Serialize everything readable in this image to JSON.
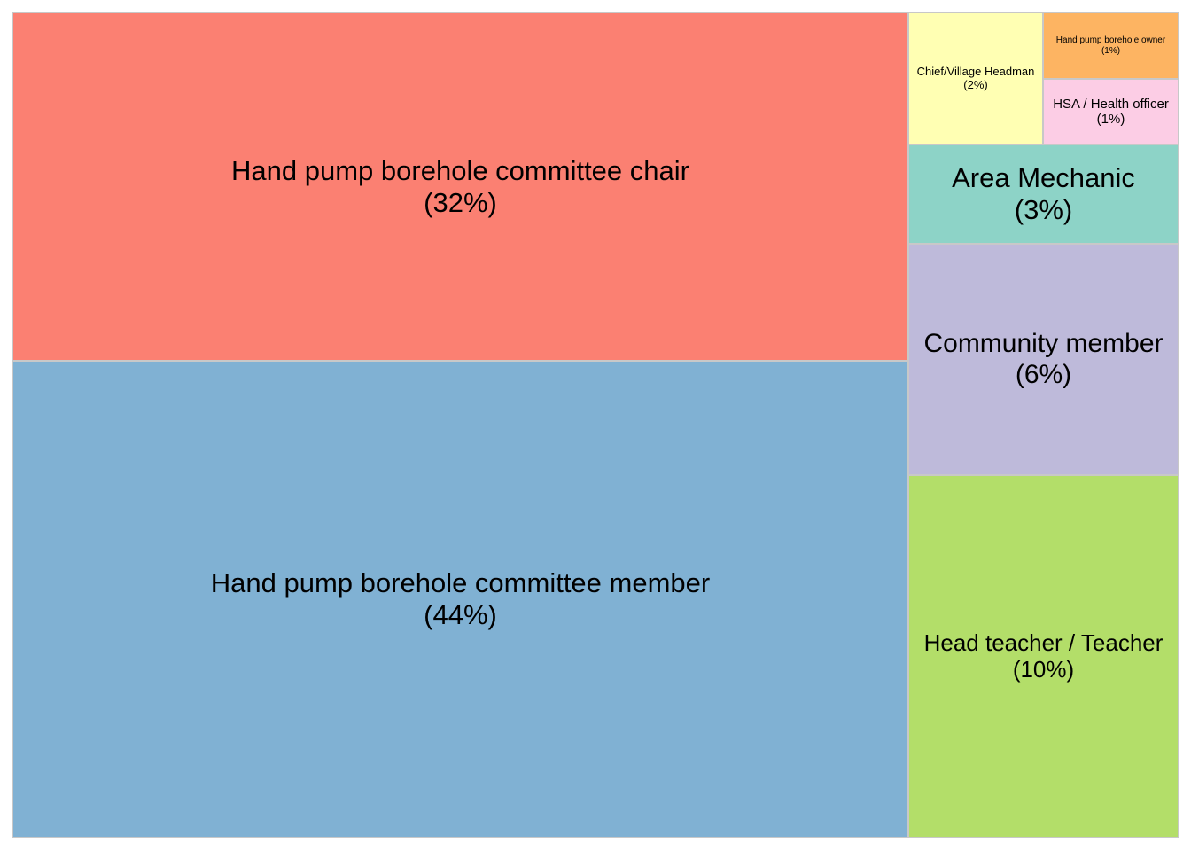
{
  "chart_data": {
    "type": "treemap",
    "title": "",
    "unit": "%",
    "items": [
      {
        "label": "Hand pump borehole committee member",
        "value_label": "(44%)",
        "value": 44,
        "color": "#80b1d3"
      },
      {
        "label": "Hand pump borehole committee chair",
        "value_label": "(32%)",
        "value": 32,
        "color": "#fb8072"
      },
      {
        "label": "Head teacher / Teacher",
        "value_label": "(10%)",
        "value": 10,
        "color": "#b3de69"
      },
      {
        "label": "Community member",
        "value_label": "(6%)",
        "value": 6,
        "color": "#bebada"
      },
      {
        "label": "Area Mechanic",
        "value_label": "(3%)",
        "value": 3,
        "color": "#8dd3c7"
      },
      {
        "label": "Chief/Village Headman",
        "value_label": "(2%)",
        "value": 2,
        "color": "#ffffb3"
      },
      {
        "label": "Hand pump borehole owner",
        "value_label": "(1%)",
        "value": 1,
        "color": "#fdb462"
      },
      {
        "label": "HSA / Health officer",
        "value_label": "(1%)",
        "value": 1,
        "color": "#fccde5"
      }
    ]
  }
}
